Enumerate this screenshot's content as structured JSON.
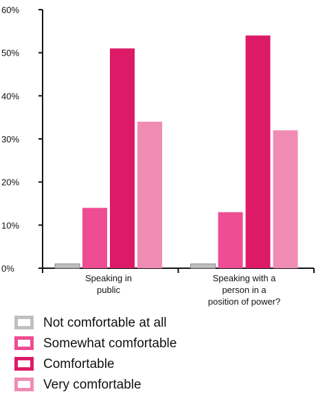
{
  "chart_data": {
    "type": "bar",
    "categories": [
      [
        "Speaking in",
        "public"
      ],
      [
        "Speaking with a",
        "person in a",
        "position of power?"
      ]
    ],
    "series": [
      {
        "name": "Not comfortable at all",
        "color": "#c0c0c0",
        "values": [
          1,
          1
        ]
      },
      {
        "name": "Somewhat comfortable",
        "color": "#ee4c93",
        "values": [
          14,
          13
        ]
      },
      {
        "name": "Comfortable",
        "color": "#dd1a68",
        "values": [
          51,
          54
        ]
      },
      {
        "name": "Very comfortable",
        "color": "#f08cb4",
        "values": [
          34,
          32
        ]
      }
    ],
    "yticks": [
      "0%",
      "10%",
      "20%",
      "30%",
      "40%",
      "50%",
      "60%"
    ],
    "ylim": [
      0,
      60
    ],
    "title": "",
    "xlabel": "",
    "ylabel": "",
    "legend_position": "bottom-left"
  }
}
